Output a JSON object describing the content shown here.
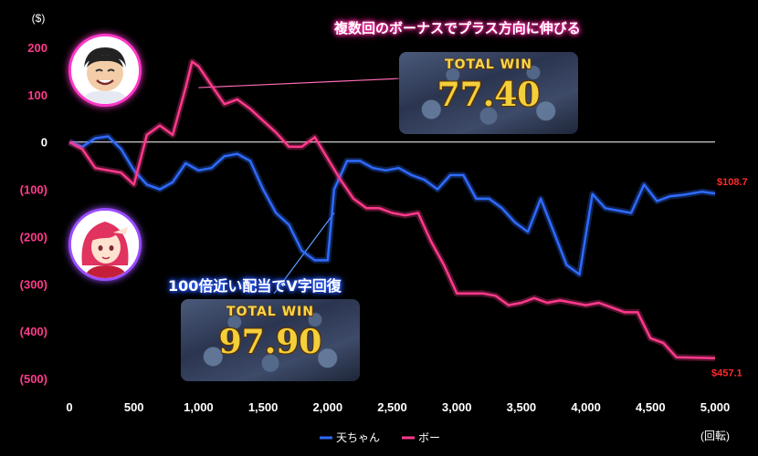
{
  "annotations": {
    "top": "複数回のボーナスでプラス方向に伸びる",
    "middle": "100倍近い配当でV字回復",
    "win1_title": "TOTAL WIN",
    "win1_value": "77.40",
    "win2_title": "TOTAL WIN",
    "win2_value": "97.90"
  },
  "colors": {
    "background": "#000000",
    "ten_line": "#2f6bff",
    "bo_line": "#ff3a8c",
    "tick_y": "#ff3a8c",
    "tick_x": "#ffffff",
    "end_label": "#ff2b2b"
  },
  "chart_data": {
    "type": "line",
    "ylabel": "($)",
    "xlabel": "(回転)",
    "xlim": [
      0,
      5000
    ],
    "ylim": [
      -500,
      200
    ],
    "x_ticks": [
      "0",
      "500",
      "1,000",
      "1,500",
      "2,000",
      "2,500",
      "3,000",
      "3,500",
      "4,000",
      "4,500",
      "5,000"
    ],
    "y_ticks": [
      "200",
      "100",
      "0",
      "(100)",
      "(200)",
      "(300)",
      "(400)",
      "(500)"
    ],
    "grid": false,
    "legend_position": "bottom-center",
    "end_labels": {
      "ten": "$108.7",
      "bo": "$457.1"
    },
    "series": [
      {
        "name": "天ちゃん",
        "color": "#2f6bff",
        "points": [
          [
            0,
            0
          ],
          [
            100,
            -10
          ],
          [
            200,
            8
          ],
          [
            300,
            12
          ],
          [
            400,
            -15
          ],
          [
            500,
            -60
          ],
          [
            600,
            -90
          ],
          [
            700,
            -100
          ],
          [
            800,
            -85
          ],
          [
            900,
            -45
          ],
          [
            1000,
            -60
          ],
          [
            1100,
            -55
          ],
          [
            1200,
            -30
          ],
          [
            1300,
            -25
          ],
          [
            1400,
            -40
          ],
          [
            1500,
            -100
          ],
          [
            1600,
            -150
          ],
          [
            1700,
            -175
          ],
          [
            1800,
            -230
          ],
          [
            1900,
            -250
          ],
          [
            2000,
            -250
          ],
          [
            2050,
            -100
          ],
          [
            2150,
            -40
          ],
          [
            2250,
            -40
          ],
          [
            2350,
            -55
          ],
          [
            2450,
            -60
          ],
          [
            2550,
            -55
          ],
          [
            2650,
            -70
          ],
          [
            2750,
            -80
          ],
          [
            2850,
            -100
          ],
          [
            2950,
            -70
          ],
          [
            3050,
            -70
          ],
          [
            3150,
            -120
          ],
          [
            3250,
            -120
          ],
          [
            3350,
            -140
          ],
          [
            3450,
            -170
          ],
          [
            3550,
            -190
          ],
          [
            3650,
            -120
          ],
          [
            3750,
            -190
          ],
          [
            3850,
            -260
          ],
          [
            3950,
            -280
          ],
          [
            4050,
            -110
          ],
          [
            4150,
            -140
          ],
          [
            4250,
            -145
          ],
          [
            4350,
            -150
          ],
          [
            4450,
            -90
          ],
          [
            4550,
            -125
          ],
          [
            4650,
            -115
          ],
          [
            4750,
            -112
          ],
          [
            4900,
            -105
          ],
          [
            5000,
            -109
          ]
        ]
      },
      {
        "name": "ボー",
        "color": "#ff3a8c",
        "points": [
          [
            0,
            0
          ],
          [
            100,
            -15
          ],
          [
            200,
            -55
          ],
          [
            300,
            -60
          ],
          [
            400,
            -65
          ],
          [
            500,
            -90
          ],
          [
            600,
            15
          ],
          [
            700,
            35
          ],
          [
            800,
            15
          ],
          [
            900,
            115
          ],
          [
            950,
            170
          ],
          [
            1000,
            160
          ],
          [
            1100,
            120
          ],
          [
            1200,
            80
          ],
          [
            1300,
            90
          ],
          [
            1400,
            70
          ],
          [
            1500,
            45
          ],
          [
            1600,
            20
          ],
          [
            1700,
            -10
          ],
          [
            1800,
            -10
          ],
          [
            1900,
            10
          ],
          [
            2000,
            -35
          ],
          [
            2100,
            -80
          ],
          [
            2200,
            -120
          ],
          [
            2300,
            -140
          ],
          [
            2400,
            -140
          ],
          [
            2500,
            -150
          ],
          [
            2600,
            -155
          ],
          [
            2700,
            -150
          ],
          [
            2800,
            -210
          ],
          [
            2900,
            -260
          ],
          [
            3000,
            -320
          ],
          [
            3100,
            -320
          ],
          [
            3200,
            -320
          ],
          [
            3300,
            -325
          ],
          [
            3400,
            -345
          ],
          [
            3500,
            -340
          ],
          [
            3600,
            -330
          ],
          [
            3700,
            -340
          ],
          [
            3800,
            -335
          ],
          [
            3900,
            -340
          ],
          [
            4000,
            -345
          ],
          [
            4100,
            -340
          ],
          [
            4200,
            -350
          ],
          [
            4300,
            -360
          ],
          [
            4400,
            -360
          ],
          [
            4500,
            -415
          ],
          [
            4600,
            -425
          ],
          [
            4700,
            -455
          ],
          [
            5000,
            -457
          ]
        ]
      }
    ]
  }
}
